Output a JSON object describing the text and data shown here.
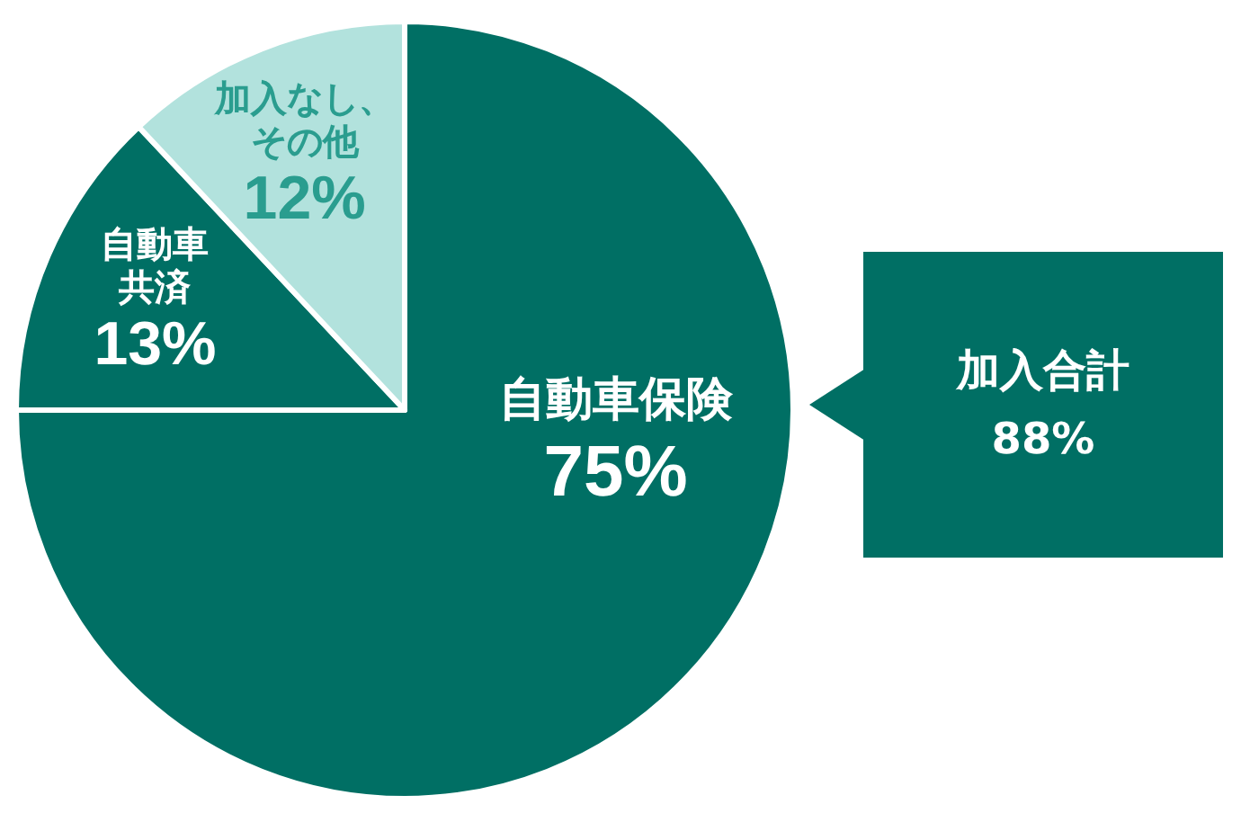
{
  "chart_data": {
    "type": "pie",
    "categories": [
      "自動車保険",
      "自動車共済",
      "加入なし、その他"
    ],
    "values": [
      75,
      13,
      12
    ],
    "colors": [
      "#006f64",
      "#006f64",
      "#b2e2dd"
    ],
    "value_labels": [
      "75%",
      "13%",
      "12%"
    ],
    "annotations": [
      "加入合計 88%"
    ]
  }
}
